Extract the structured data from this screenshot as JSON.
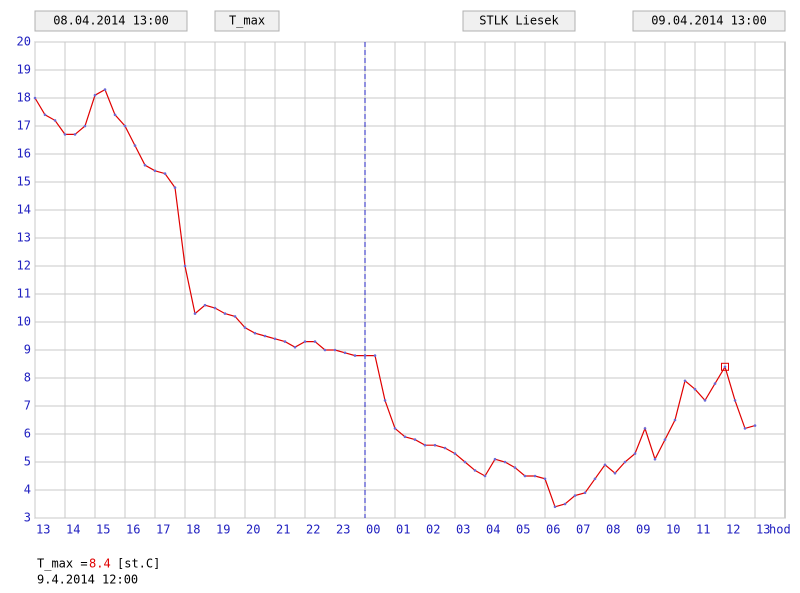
{
  "chart_data": {
    "type": "line",
    "header": {
      "start": "08.04.2014 13:00",
      "variable": "T_max",
      "title": "STLK Liesek",
      "end": "09.04.2014 13:00"
    },
    "x_unit_label": "hod",
    "x": [
      0,
      20,
      40,
      60,
      80,
      100,
      120,
      140,
      160,
      180,
      200,
      220,
      240,
      260,
      280,
      300,
      320,
      340,
      360,
      380,
      400,
      420,
      440,
      460,
      480,
      500,
      520,
      540,
      560,
      580,
      600,
      620,
      640,
      660,
      680,
      700,
      720,
      740,
      760,
      780,
      800,
      820,
      840,
      860,
      880,
      900,
      920,
      940,
      960,
      980,
      1000,
      1020,
      1040,
      1060,
      1080,
      1100,
      1120,
      1140,
      1160,
      1180,
      1200,
      1220,
      1240,
      1260,
      1280,
      1300,
      1320,
      1340,
      1360,
      1380,
      1400,
      1420,
      1440
    ],
    "series": [
      {
        "name": "T_max",
        "color": "#e00000",
        "point_color": "#6a6ad8",
        "values": [
          18.0,
          17.4,
          17.2,
          16.7,
          16.7,
          17.0,
          18.1,
          18.3,
          17.4,
          17.0,
          16.3,
          15.6,
          15.4,
          15.3,
          14.8,
          12.0,
          10.3,
          10.6,
          10.5,
          10.3,
          10.2,
          9.8,
          9.6,
          9.5,
          9.4,
          9.3,
          9.1,
          9.3,
          9.3,
          9.0,
          9.0,
          8.9,
          8.8,
          8.8,
          8.8,
          7.2,
          6.2,
          5.9,
          5.8,
          5.6,
          5.6,
          5.5,
          5.3,
          5.0,
          4.7,
          4.5,
          5.1,
          5.0,
          4.8,
          4.5,
          4.5,
          4.4,
          3.4,
          3.5,
          3.8,
          3.9,
          4.4,
          4.9,
          4.6,
          5.0,
          5.3,
          6.2,
          5.1,
          5.8,
          6.5,
          7.9,
          7.6,
          7.2,
          7.8,
          8.4,
          7.2,
          6.2,
          6.3
        ]
      }
    ],
    "xlim": [
      0,
      1500
    ],
    "xticks": [
      {
        "value": 0,
        "label": "13"
      },
      {
        "value": 60,
        "label": "14"
      },
      {
        "value": 120,
        "label": "15"
      },
      {
        "value": 180,
        "label": "16"
      },
      {
        "value": 240,
        "label": "17"
      },
      {
        "value": 300,
        "label": "18"
      },
      {
        "value": 360,
        "label": "19"
      },
      {
        "value": 420,
        "label": "20"
      },
      {
        "value": 480,
        "label": "21"
      },
      {
        "value": 540,
        "label": "22"
      },
      {
        "value": 600,
        "label": "23"
      },
      {
        "value": 660,
        "label": "00"
      },
      {
        "value": 720,
        "label": "01"
      },
      {
        "value": 780,
        "label": "02"
      },
      {
        "value": 840,
        "label": "03"
      },
      {
        "value": 900,
        "label": "04"
      },
      {
        "value": 960,
        "label": "05"
      },
      {
        "value": 1020,
        "label": "06"
      },
      {
        "value": 1080,
        "label": "07"
      },
      {
        "value": 1140,
        "label": "08"
      },
      {
        "value": 1200,
        "label": "09"
      },
      {
        "value": 1260,
        "label": "10"
      },
      {
        "value": 1320,
        "label": "11"
      },
      {
        "value": 1380,
        "label": "12"
      },
      {
        "value": 1440,
        "label": "13"
      }
    ],
    "ylim": [
      3,
      20
    ],
    "yticks": [
      3,
      4,
      5,
      6,
      7,
      8,
      9,
      10,
      11,
      12,
      13,
      14,
      15,
      16,
      17,
      18,
      19,
      20
    ],
    "grid": true,
    "day_boundary": 660,
    "readout": {
      "label": "T_max =",
      "value": 8.4,
      "unit": "[st.C]",
      "time": "9.4.2014 12:00",
      "x": 1380
    }
  }
}
